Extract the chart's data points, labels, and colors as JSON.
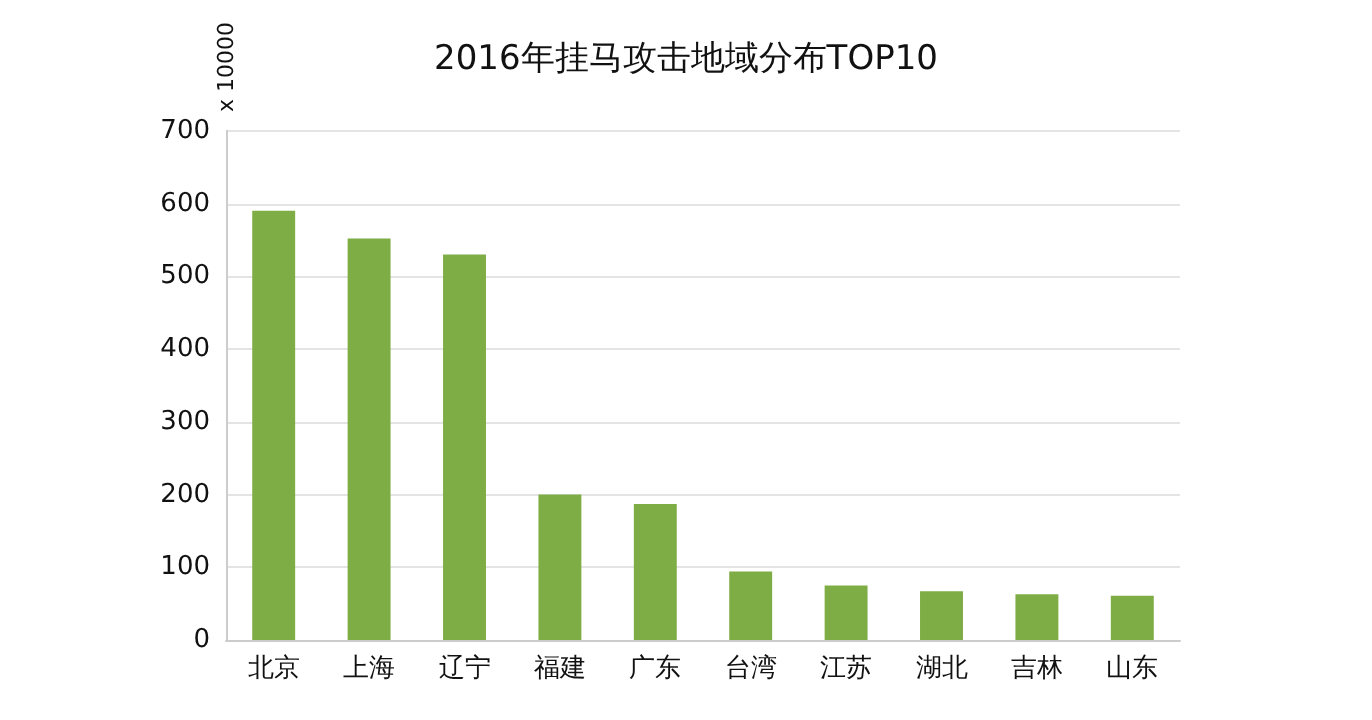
{
  "chart_data": {
    "type": "bar",
    "title": "2016年挂马攻击地域分布TOP10",
    "ylabel": "x 10000",
    "categories": [
      "北京",
      "上海",
      "辽宁",
      "福建",
      "广东",
      "台湾",
      "江苏",
      "湖北",
      "吉林",
      "山东"
    ],
    "values": [
      590,
      552,
      530,
      200,
      187,
      94,
      75,
      67,
      63,
      61
    ],
    "color": "#7fad45",
    "ylim": [
      0,
      700
    ],
    "yticks": [
      0,
      100,
      200,
      300,
      400,
      500,
      600,
      700
    ],
    "grid": "y"
  }
}
